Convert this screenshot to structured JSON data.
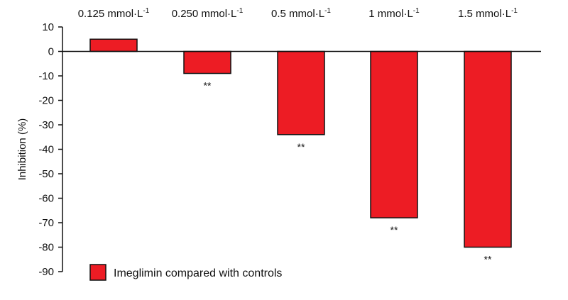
{
  "chart_data": {
    "type": "bar",
    "categories": [
      {
        "label": "0.125 mmol·L",
        "sup": "-1"
      },
      {
        "label": "0.250 mmol·L",
        "sup": "-1"
      },
      {
        "label": "0.5 mmol·L",
        "sup": "-1"
      },
      {
        "label": "1 mmol·L",
        "sup": "-1"
      },
      {
        "label": "1.5 mmol·L",
        "sup": "-1"
      }
    ],
    "series": [
      {
        "name": "Imeglimin compared with controls",
        "values": [
          5,
          -9,
          -34,
          -68,
          -80
        ],
        "significance": [
          "",
          "**",
          "**",
          "**",
          "**"
        ],
        "color": "#ed1c24"
      }
    ],
    "ylabel": "Inhibition (%)",
    "ylim": [
      -90,
      10
    ],
    "yticks": [
      10,
      0,
      -10,
      -20,
      -30,
      -40,
      -50,
      -60,
      -70,
      -80,
      -90
    ],
    "grid": false,
    "legend_position": "bottom-left"
  }
}
